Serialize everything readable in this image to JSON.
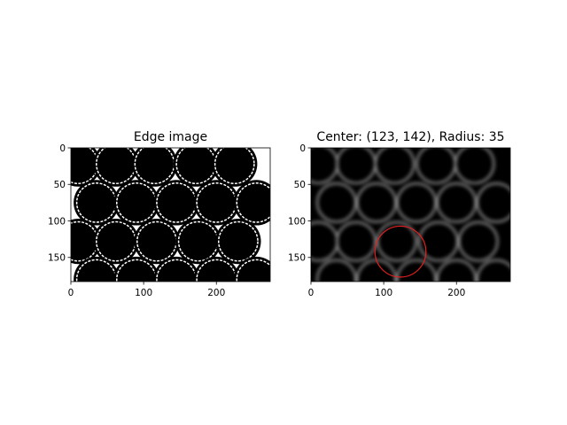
{
  "figure": {
    "background": "#ffffff"
  },
  "chart_data": [
    {
      "type": "image",
      "title": "Edge image",
      "xlim": [
        0,
        274
      ],
      "ylim": [
        183,
        0
      ],
      "x_ticks": [
        0,
        100,
        200
      ],
      "y_ticks": [
        0,
        50,
        100,
        150
      ],
      "colormap": "binary (white edges on black)",
      "circles": [
        {
          "cx": 10,
          "cy": 22,
          "r": 30
        },
        {
          "cx": 62,
          "cy": 22,
          "r": 30
        },
        {
          "cx": 115,
          "cy": 22,
          "r": 30
        },
        {
          "cx": 172,
          "cy": 22,
          "r": 30
        },
        {
          "cx": 225,
          "cy": 22,
          "r": 30
        },
        {
          "cx": 35,
          "cy": 75,
          "r": 30
        },
        {
          "cx": 90,
          "cy": 75,
          "r": 30
        },
        {
          "cx": 145,
          "cy": 75,
          "r": 30
        },
        {
          "cx": 200,
          "cy": 75,
          "r": 30
        },
        {
          "cx": 255,
          "cy": 75,
          "r": 30
        },
        {
          "cx": 10,
          "cy": 128,
          "r": 30
        },
        {
          "cx": 62,
          "cy": 128,
          "r": 30
        },
        {
          "cx": 118,
          "cy": 128,
          "r": 30
        },
        {
          "cx": 175,
          "cy": 128,
          "r": 30
        },
        {
          "cx": 230,
          "cy": 128,
          "r": 30
        },
        {
          "cx": 35,
          "cy": 180,
          "r": 30
        },
        {
          "cx": 90,
          "cy": 180,
          "r": 30
        },
        {
          "cx": 145,
          "cy": 180,
          "r": 30
        },
        {
          "cx": 200,
          "cy": 180,
          "r": 30
        },
        {
          "cx": 255,
          "cy": 180,
          "r": 30
        }
      ]
    },
    {
      "type": "image",
      "title": "Center: (123, 142), Radius: 35",
      "xlim": [
        0,
        274
      ],
      "ylim": [
        183,
        0
      ],
      "x_ticks": [
        0,
        100,
        200
      ],
      "y_ticks": [
        0,
        50,
        100,
        150
      ],
      "colormap": "gray",
      "detected_circle": {
        "cx": 123,
        "cy": 142,
        "r": 35,
        "color": "#e02020"
      }
    }
  ]
}
